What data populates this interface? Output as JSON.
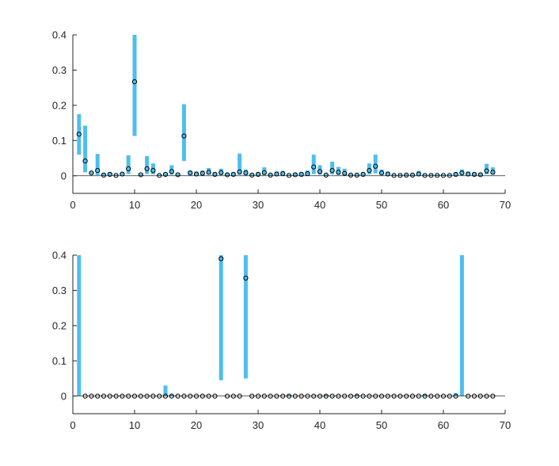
{
  "colors": {
    "bar": "#4DBEEE",
    "marker": "#000000",
    "axis": "#262626",
    "background": "#FFFFFF"
  },
  "chart_data": [
    {
      "type": "scatter",
      "title": "",
      "xlabel": "",
      "ylabel": "",
      "xlim": [
        0,
        70
      ],
      "ylim": [
        -0.05,
        0.4
      ],
      "xticks": [
        0,
        10,
        20,
        30,
        40,
        50,
        60,
        70
      ],
      "yticks": [
        0,
        0.1,
        0.2,
        0.3,
        0.4
      ],
      "ytick_labels": [
        "0",
        "0.1",
        "0.2",
        "0.3",
        "0.4"
      ],
      "grid": false,
      "zero_line": true,
      "x": [
        1,
        2,
        3,
        4,
        5,
        6,
        7,
        8,
        9,
        10,
        11,
        12,
        13,
        14,
        15,
        16,
        17,
        18,
        19,
        20,
        21,
        22,
        23,
        24,
        25,
        26,
        27,
        28,
        29,
        30,
        31,
        32,
        33,
        34,
        35,
        36,
        37,
        38,
        39,
        40,
        41,
        42,
        43,
        44,
        45,
        46,
        47,
        48,
        49,
        50,
        51,
        52,
        53,
        54,
        55,
        56,
        57,
        58,
        59,
        60,
        61,
        62,
        63,
        64,
        65,
        66,
        67,
        68
      ],
      "series": [
        {
          "values": [
            0.118,
            0.042,
            0.008,
            0.015,
            0.002,
            0.004,
            0.001,
            0.005,
            0.02,
            0.267,
            0.003,
            0.02,
            0.015,
            0.001,
            0.004,
            0.012,
            0.003,
            0.113,
            0.008,
            0.005,
            0.007,
            0.01,
            0.004,
            0.009,
            0.003,
            0.004,
            0.011,
            0.008,
            0.002,
            0.004,
            0.009,
            0.002,
            0.005,
            0.006,
            0.001,
            0.003,
            0.004,
            0.006,
            0.025,
            0.012,
            0.002,
            0.015,
            0.01,
            0.007,
            0.002,
            0.002,
            0.004,
            0.015,
            0.027,
            0.008,
            0.005,
            0.001,
            0.001,
            0.002,
            0.002,
            0.005,
            0.001,
            0.001,
            0.001,
            0.001,
            0.001,
            0.004,
            0.008,
            0.005,
            0.004,
            0.003,
            0.014,
            0.01
          ]
        },
        {
          "values": [
            [
              0.06,
              0.175
            ],
            [
              0.01,
              0.142
            ],
            [
              0.004,
              0.012
            ],
            [
              0.002,
              0.062
            ],
            [
              0.0,
              0.008
            ],
            [
              0.001,
              0.01
            ],
            [
              0.0,
              0.004
            ],
            [
              0.001,
              0.01
            ],
            [
              0.005,
              0.058
            ],
            [
              0.113,
              0.4
            ],
            [
              0.0,
              0.006
            ],
            [
              0.005,
              0.056
            ],
            [
              0.004,
              0.035
            ],
            [
              0.0,
              0.004
            ],
            [
              0.001,
              0.008
            ],
            [
              0.003,
              0.03
            ],
            [
              0.0,
              0.006
            ],
            [
              0.042,
              0.203
            ],
            [
              0.002,
              0.015
            ],
            [
              0.001,
              0.012
            ],
            [
              0.002,
              0.015
            ],
            [
              0.003,
              0.022
            ],
            [
              0.001,
              0.01
            ],
            [
              0.002,
              0.02
            ],
            [
              0.0,
              0.008
            ],
            [
              0.001,
              0.01
            ],
            [
              0.003,
              0.063
            ],
            [
              0.002,
              0.018
            ],
            [
              0.0,
              0.006
            ],
            [
              0.001,
              0.01
            ],
            [
              0.002,
              0.024
            ],
            [
              0.0,
              0.006
            ],
            [
              0.001,
              0.012
            ],
            [
              0.001,
              0.014
            ],
            [
              0.0,
              0.004
            ],
            [
              0.001,
              0.008
            ],
            [
              0.001,
              0.01
            ],
            [
              0.001,
              0.015
            ],
            [
              0.005,
              0.06
            ],
            [
              0.003,
              0.03
            ],
            [
              0.0,
              0.006
            ],
            [
              0.004,
              0.04
            ],
            [
              0.002,
              0.025
            ],
            [
              0.002,
              0.02
            ],
            [
              0.0,
              0.006
            ],
            [
              0.0,
              0.006
            ],
            [
              0.001,
              0.01
            ],
            [
              0.004,
              0.035
            ],
            [
              0.007,
              0.06
            ],
            [
              0.002,
              0.018
            ],
            [
              0.001,
              0.012
            ],
            [
              0.0,
              0.004
            ],
            [
              0.0,
              0.004
            ],
            [
              0.0,
              0.006
            ],
            [
              0.0,
              0.006
            ],
            [
              0.001,
              0.014
            ],
            [
              0.0,
              0.004
            ],
            [
              0.0,
              0.004
            ],
            [
              0.0,
              0.004
            ],
            [
              0.0,
              0.004
            ],
            [
              0.0,
              0.004
            ],
            [
              0.001,
              0.01
            ],
            [
              0.002,
              0.018
            ],
            [
              0.001,
              0.012
            ],
            [
              0.001,
              0.01
            ],
            [
              0.001,
              0.008
            ],
            [
              0.004,
              0.034
            ],
            [
              0.003,
              0.024
            ]
          ]
        }
      ]
    },
    {
      "type": "scatter",
      "title": "",
      "xlabel": "",
      "ylabel": "",
      "xlim": [
        0,
        70
      ],
      "ylim": [
        -0.05,
        0.4
      ],
      "xticks": [
        0,
        10,
        20,
        30,
        40,
        50,
        60,
        70
      ],
      "yticks": [
        0,
        0.1,
        0.2,
        0.3,
        0.4
      ],
      "ytick_labels": [
        "0",
        "0.1",
        "0.2",
        "0.3",
        "0.4"
      ],
      "grid": false,
      "zero_line": true,
      "x": [
        1,
        2,
        3,
        4,
        5,
        6,
        7,
        8,
        9,
        10,
        11,
        12,
        13,
        14,
        15,
        16,
        17,
        18,
        19,
        20,
        21,
        22,
        23,
        24,
        25,
        26,
        27,
        28,
        29,
        30,
        31,
        32,
        33,
        34,
        35,
        36,
        37,
        38,
        39,
        40,
        41,
        42,
        43,
        44,
        45,
        46,
        47,
        48,
        49,
        50,
        51,
        52,
        53,
        54,
        55,
        56,
        57,
        58,
        59,
        60,
        61,
        62,
        63,
        64,
        65,
        66,
        67,
        68
      ],
      "series": [
        {
          "values": [
            null,
            0,
            0,
            0,
            0,
            0,
            0,
            0,
            0,
            0,
            0,
            0,
            0,
            0,
            0,
            0,
            0,
            0,
            0,
            0,
            0,
            0,
            0,
            0.39,
            0,
            0,
            0,
            0.335,
            0,
            0,
            0,
            0,
            0,
            0,
            0,
            0,
            0,
            0,
            0,
            0,
            0,
            0,
            0,
            0,
            0,
            0,
            0,
            0,
            0,
            0,
            0,
            0,
            0,
            0,
            0,
            0,
            0,
            0,
            0,
            0,
            0,
            0,
            null,
            0,
            0,
            0,
            0,
            0
          ]
        },
        {
          "values": [
            [
              0,
              0.4
            ],
            null,
            null,
            null,
            null,
            null,
            null,
            null,
            null,
            null,
            null,
            null,
            null,
            null,
            [
              0,
              0.03
            ],
            [
              0,
              0.005
            ],
            null,
            null,
            null,
            null,
            null,
            null,
            null,
            [
              0.045,
              0.4
            ],
            null,
            null,
            null,
            [
              0.05,
              0.4
            ],
            null,
            null,
            null,
            null,
            null,
            null,
            [
              0,
              0.004
            ],
            null,
            null,
            null,
            null,
            null,
            [
              0,
              0.004
            ],
            null,
            null,
            null,
            null,
            [
              0,
              0.005
            ],
            null,
            null,
            null,
            null,
            null,
            null,
            null,
            null,
            null,
            null,
            [
              0,
              0.006
            ],
            null,
            null,
            null,
            null,
            [
              0,
              0.008
            ],
            [
              0,
              0.4
            ],
            null,
            null,
            null,
            null,
            null
          ]
        }
      ]
    }
  ]
}
